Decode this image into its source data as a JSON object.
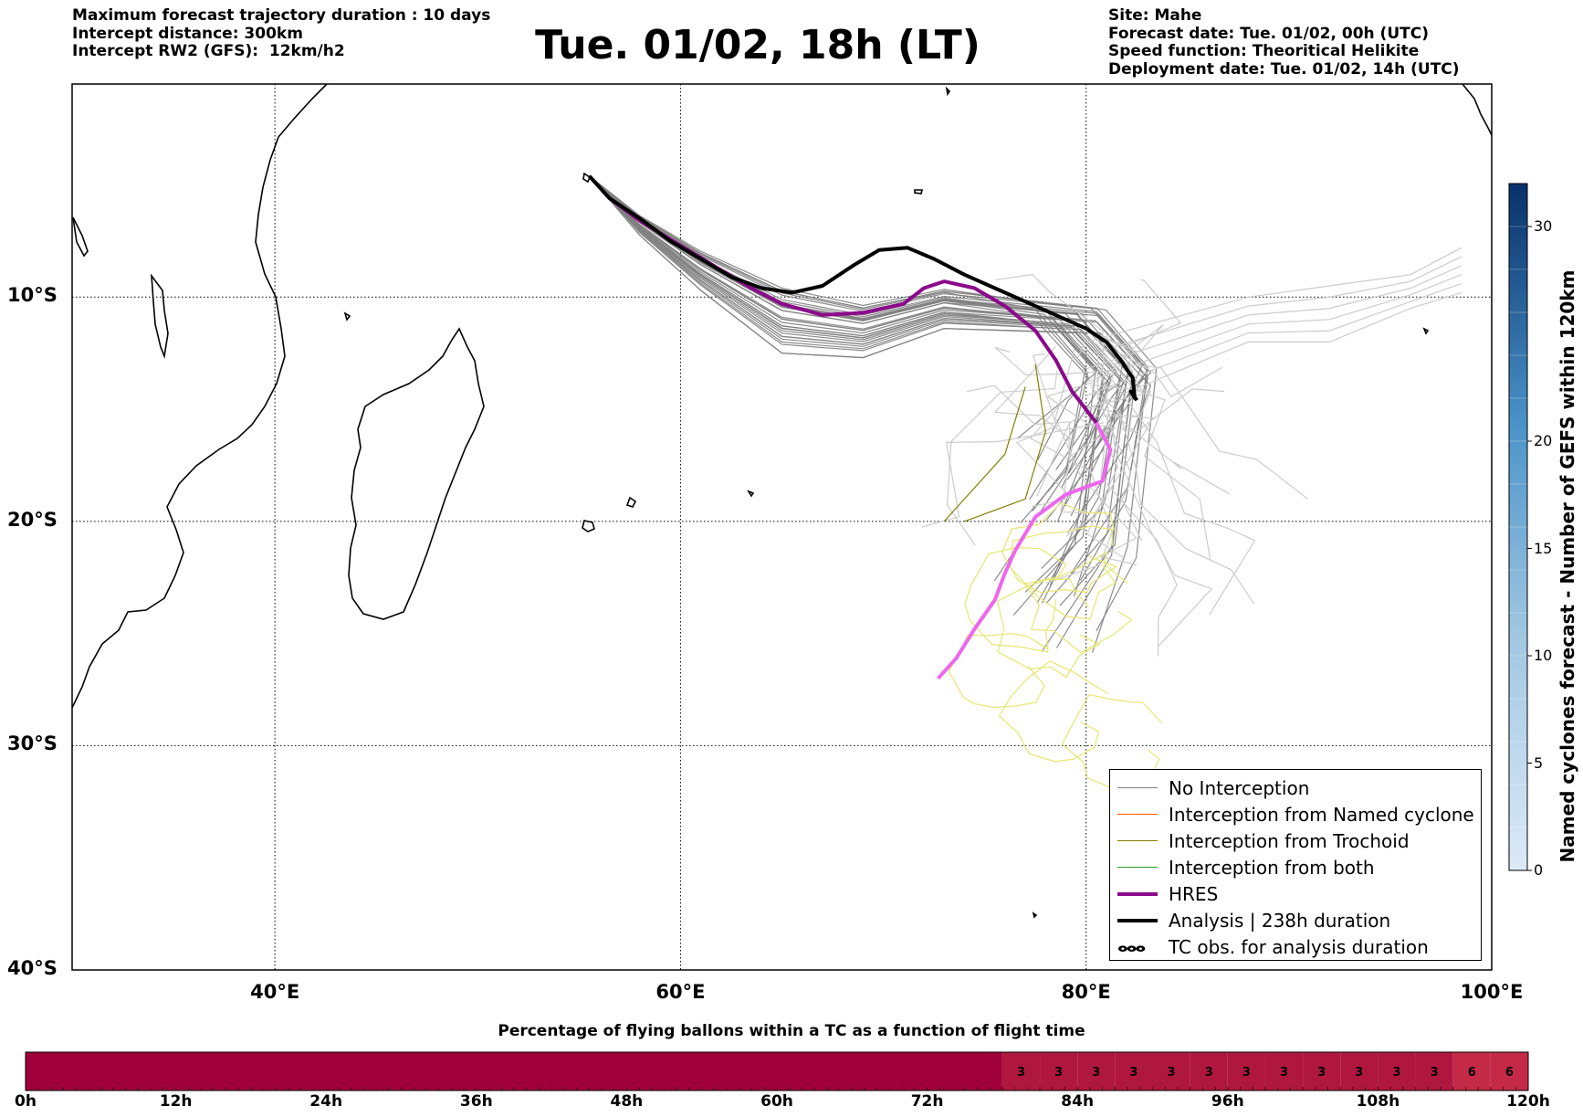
{
  "header": {
    "left": [
      "Maximum forecast trajectory duration : 10 days",
      "Intercept distance: 300km",
      "Intercept RW2 (GFS):  12km/h2"
    ],
    "title": "Tue. 01/02, 18h (LT)",
    "right": [
      "Site: Mahe",
      "Forecast date: Tue. 01/02, 00h (UTC)",
      "Speed function: Theoritical Helikite",
      "Deployment date: Tue. 01/02, 14h (UTC)"
    ]
  },
  "map": {
    "lon_range": [
      30,
      100
    ],
    "lat_range": [
      -40,
      -0.5
    ],
    "lon_gridlines": [
      40,
      60,
      80
    ],
    "lat_gridlines": [
      -10,
      -20,
      -30
    ],
    "lat_labels": [
      {
        "lat": -10,
        "text": "10°S"
      },
      {
        "lat": -20,
        "text": "20°S"
      },
      {
        "lat": -30,
        "text": "30°S"
      },
      {
        "lat": -40,
        "text": "40°S"
      }
    ],
    "lon_labels": [
      {
        "lon": 40,
        "text": "40°E"
      },
      {
        "lon": 60,
        "text": "60°E"
      },
      {
        "lon": 80,
        "text": "80°E"
      },
      {
        "lon": 100,
        "text": "100°E"
      }
    ],
    "launch_site": {
      "lon": 55.5,
      "lat": -4.6
    },
    "hres_track": [
      [
        55.5,
        -4.6
      ],
      [
        56.5,
        -5.6
      ],
      [
        58,
        -6.6
      ],
      [
        60,
        -7.7
      ],
      [
        62,
        -8.8
      ],
      [
        63.5,
        -9.6
      ],
      [
        65,
        -10.3
      ],
      [
        67,
        -10.8
      ],
      [
        69,
        -10.7
      ],
      [
        71,
        -10.3
      ],
      [
        72,
        -9.6
      ],
      [
        73,
        -9.3
      ],
      [
        74.5,
        -9.6
      ],
      [
        76,
        -10.4
      ],
      [
        77.5,
        -11.5
      ],
      [
        78.5,
        -12.8
      ],
      [
        79.3,
        -14.2
      ],
      [
        80.5,
        -15.6
      ],
      [
        81.2,
        -16.8
      ],
      [
        80.8,
        -18.2
      ],
      [
        79,
        -18.8
      ],
      [
        77.5,
        -19.8
      ],
      [
        76.5,
        -21.3
      ],
      [
        76,
        -22.3
      ],
      [
        75.5,
        -23.5
      ],
      [
        74.5,
        -24.8
      ],
      [
        73.6,
        -26.1
      ],
      [
        72.7,
        -27
      ]
    ],
    "analysis_track": [
      [
        55.5,
        -4.6
      ],
      [
        56.5,
        -5.6
      ],
      [
        58,
        -6.5
      ],
      [
        59.5,
        -7.5
      ],
      [
        61,
        -8.3
      ],
      [
        62.5,
        -9.1
      ],
      [
        64,
        -9.6
      ],
      [
        65.5,
        -9.8
      ],
      [
        67,
        -9.5
      ],
      [
        68.5,
        -8.6
      ],
      [
        69.8,
        -7.9
      ],
      [
        71.2,
        -7.8
      ],
      [
        72.5,
        -8.3
      ],
      [
        74,
        -9.0
      ],
      [
        75.5,
        -9.6
      ],
      [
        77,
        -10.2
      ],
      [
        78.5,
        -10.8
      ],
      [
        80,
        -11.4
      ],
      [
        81,
        -12.0
      ],
      [
        81.7,
        -12.8
      ],
      [
        82.3,
        -13.6
      ],
      [
        82.4,
        -14.5
      ],
      [
        82.2,
        -14.2
      ],
      [
        82.5,
        -14.6
      ]
    ],
    "cmap_legend_colors": {
      "no_interception": "#7f7f7f",
      "named_cyclone": "#ff5500",
      "trochoid": "#808000",
      "both": "#2e9c2e",
      "hres": "#8b0a8b",
      "hres_later": "#ee66ee",
      "analysis": "#000000",
      "light_gray": "#cccccc",
      "yellow": "#e8e87a"
    }
  },
  "legend": {
    "items": [
      {
        "label": "No Interception",
        "color": "#7f7f7f",
        "width": 1.5
      },
      {
        "label": "Interception from Named cyclone",
        "color": "#ff5500",
        "width": 1.5
      },
      {
        "label": "Interception from Trochoid",
        "color": "#808000",
        "width": 1.5
      },
      {
        "label": "Interception from both",
        "color": "#2e9c2e",
        "width": 1.5
      },
      {
        "label": "HRES",
        "color": "#8b0a8b",
        "width": 4
      },
      {
        "label": "Analysis | 238h duration",
        "color": "#000000",
        "width": 4
      }
    ],
    "tc_symbol": "ⴰⴰⴰ",
    "tc_label": "TC obs. for analysis duration"
  },
  "colorbar": {
    "label": "Named cyclones forecast - Number of GEFS within 120km",
    "ticks": [
      "0",
      "5",
      "10",
      "15",
      "20",
      "30"
    ],
    "tick_values": [
      0,
      5,
      10,
      15,
      20,
      30
    ],
    "max": 32,
    "color_low": "#dce9f7",
    "color_high": "#08306b"
  },
  "percent_bar": {
    "title": "Percentage of flying ballons within a TC as a function of flight time",
    "hours_max": 120,
    "tick_labels": [
      "0h",
      "12h",
      "24h",
      "36h",
      "48h",
      "60h",
      "72h",
      "84h",
      "96h",
      "108h",
      "120h"
    ],
    "segments": [
      {
        "from_h": 0,
        "to_h": 78,
        "value": 0
      },
      {
        "from_h": 78,
        "to_h": 81,
        "value": 3
      },
      {
        "from_h": 81,
        "to_h": 84,
        "value": 3
      },
      {
        "from_h": 84,
        "to_h": 87,
        "value": 3
      },
      {
        "from_h": 87,
        "to_h": 90,
        "value": 3
      },
      {
        "from_h": 90,
        "to_h": 93,
        "value": 3
      },
      {
        "from_h": 93,
        "to_h": 96,
        "value": 3
      },
      {
        "from_h": 96,
        "to_h": 99,
        "value": 3
      },
      {
        "from_h": 99,
        "to_h": 102,
        "value": 3
      },
      {
        "from_h": 102,
        "to_h": 105,
        "value": 3
      },
      {
        "from_h": 105,
        "to_h": 108,
        "value": 3
      },
      {
        "from_h": 108,
        "to_h": 111,
        "value": 3
      },
      {
        "from_h": 111,
        "to_h": 114,
        "value": 3
      },
      {
        "from_h": 114,
        "to_h": 117,
        "value": 6
      },
      {
        "from_h": 117,
        "to_h": 120,
        "value": 6
      }
    ],
    "colors": {
      "0": "#a0003a",
      "3": "#b0173f",
      "6": "#c42a47"
    }
  }
}
